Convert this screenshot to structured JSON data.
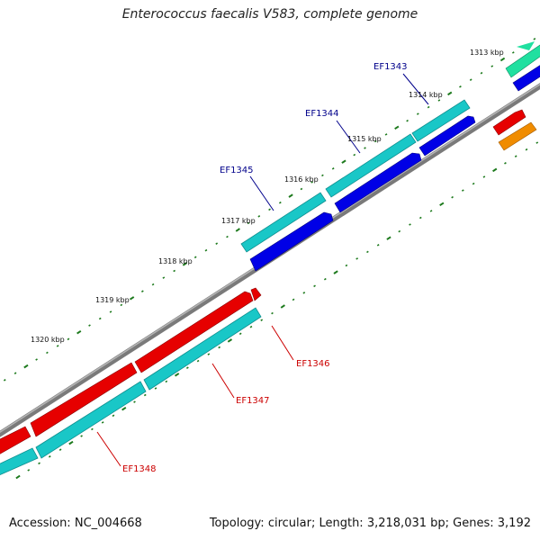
{
  "title": "Enterococcus faecalis V583, complete genome",
  "footer": {
    "accession_label": "Accession:",
    "accession": "NC_004668",
    "topology_label": "Topology:",
    "topology": "circular",
    "length_label": "Length:",
    "length": "3,218,031 bp",
    "genes_label": "Genes:",
    "genes": "3,192"
  },
  "scale": {
    "ticks": [
      "1313 kbp",
      "1314 kbp",
      "1315 kbp",
      "1316 kbp",
      "1317 kbp",
      "1318 kbp",
      "1319 kbp",
      "1320 kbp"
    ]
  },
  "genes_outer": [
    "EF1343",
    "EF1344",
    "EF1345"
  ],
  "genes_inner": [
    "EF1346",
    "EF1347",
    "EF1348"
  ],
  "colors": {
    "gene_cyan": "#19c7c7",
    "gene_blue": "#0000e6",
    "gene_red": "#e60000",
    "gene_orange": "#f08c00",
    "gene_green": "#20e0a0",
    "backbone": "#7a7a7a",
    "tick": "#1d7a1d",
    "label_outer": "#00008b",
    "label_inner": "#cc0000"
  }
}
